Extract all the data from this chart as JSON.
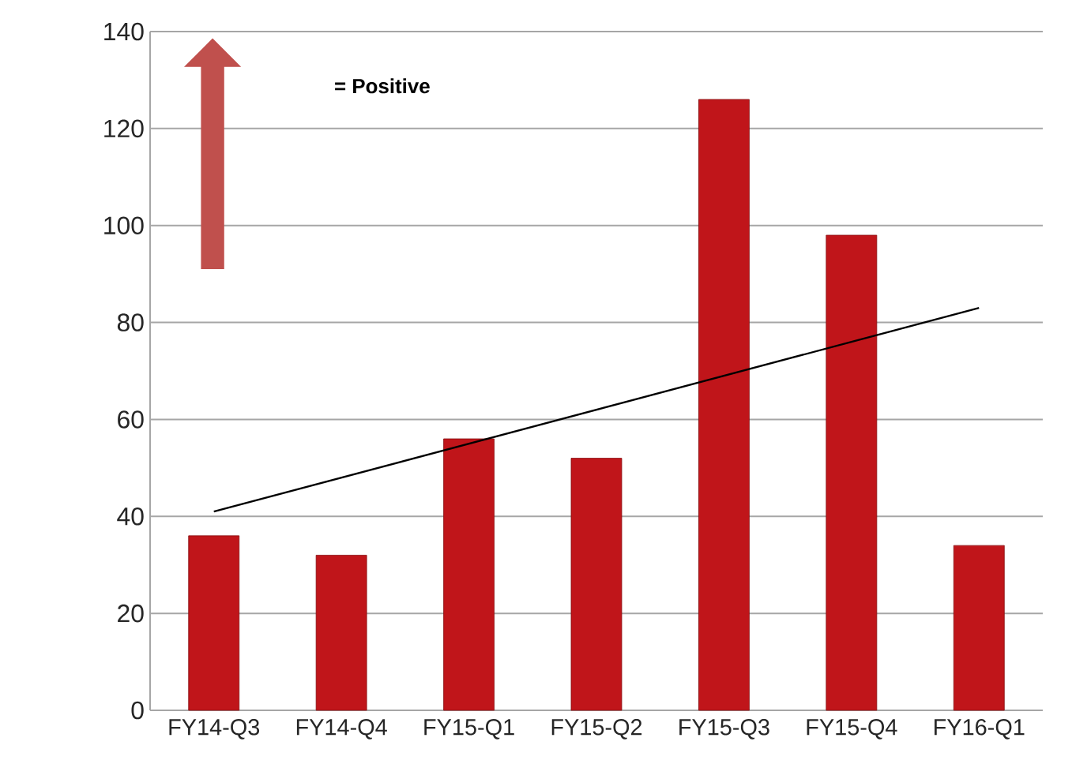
{
  "chart_data": {
    "type": "bar",
    "categories": [
      "FY14-Q3",
      "FY14-Q4",
      "FY15-Q1",
      "FY15-Q2",
      "FY15-Q3",
      "FY15-Q4",
      "FY16-Q1"
    ],
    "series": [
      {
        "color": "#c0151a",
        "values": [
          36,
          32,
          56,
          52,
          126,
          98,
          34
        ]
      },
      {
        "type": "line",
        "color": "#000000",
        "values": [
          41,
          48,
          55,
          62,
          69,
          76,
          83
        ]
      }
    ],
    "annotations": [
      "= Positive"
    ],
    "ylim": [
      0,
      140
    ],
    "yticks": [
      0,
      20,
      40,
      60,
      80,
      100,
      120,
      140
    ],
    "grid": "y"
  }
}
